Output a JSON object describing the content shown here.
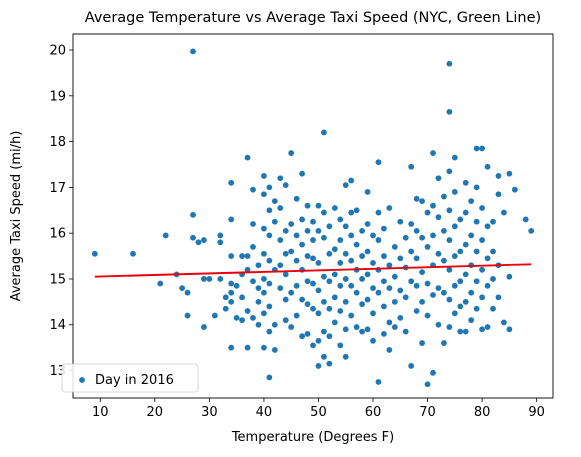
{
  "chart_data": {
    "type": "scatter",
    "title": "Average Temperature vs Average Taxi Speed (NYC, Green Line)",
    "xlabel": "Temperature (Degrees F)",
    "ylabel": "Average Taxi Speed (mi/h)",
    "xlim": [
      5.0,
      93.0
    ],
    "ylim": [
      12.4,
      20.35
    ],
    "x_ticks": [
      "10",
      "20",
      "30",
      "40",
      "50",
      "60",
      "70",
      "80",
      "90"
    ],
    "y_ticks": [
      "13",
      "14",
      "15",
      "16",
      "17",
      "18",
      "19",
      "20"
    ],
    "grid": false,
    "legend": {
      "position": "lower-left",
      "entries": [
        "Day in 2016"
      ]
    },
    "colors": {
      "points": "#1f77b4",
      "trend": "#e8000b"
    },
    "trend_line": {
      "x": [
        9,
        89
      ],
      "y": [
        15.05,
        15.32
      ]
    },
    "series": [
      {
        "name": "Day in 2016",
        "points": [
          [
            9,
            15.55
          ],
          [
            16,
            15.55
          ],
          [
            21,
            14.9
          ],
          [
            22,
            15.95
          ],
          [
            24,
            15.1
          ],
          [
            25,
            14.8
          ],
          [
            26,
            14.2
          ],
          [
            26,
            14.7
          ],
          [
            27,
            19.97
          ],
          [
            27,
            16.4
          ],
          [
            27,
            15.9
          ],
          [
            28,
            15.8
          ],
          [
            29,
            15.85
          ],
          [
            29,
            15.0
          ],
          [
            29,
            13.95
          ],
          [
            30,
            15.0
          ],
          [
            31,
            14.2
          ],
          [
            32,
            15.95
          ],
          [
            32,
            15.8
          ],
          [
            32,
            15.0
          ],
          [
            33,
            14.6
          ],
          [
            33,
            14.35
          ],
          [
            34,
            17.1
          ],
          [
            34,
            16.3
          ],
          [
            34,
            15.5
          ],
          [
            34,
            14.9
          ],
          [
            34,
            14.7
          ],
          [
            34,
            14.5
          ],
          [
            34,
            13.5
          ],
          [
            35,
            14.85
          ],
          [
            35,
            14.15
          ],
          [
            36,
            15.5
          ],
          [
            36,
            15.1
          ],
          [
            36,
            14.6
          ],
          [
            36,
            14.1
          ],
          [
            37,
            17.65
          ],
          [
            37,
            15.5
          ],
          [
            37,
            15.2
          ],
          [
            37,
            14.3
          ],
          [
            37,
            13.5
          ],
          [
            38,
            16.95
          ],
          [
            38,
            16.2
          ],
          [
            38,
            15.7
          ],
          [
            38,
            14.95
          ],
          [
            38,
            14.15
          ],
          [
            39,
            15.3
          ],
          [
            39,
            14.8
          ],
          [
            39,
            14.5
          ],
          [
            39,
            14.0
          ],
          [
            40,
            17.25
          ],
          [
            40,
            16.85
          ],
          [
            40,
            16.1
          ],
          [
            40,
            15.55
          ],
          [
            40,
            15.0
          ],
          [
            40,
            14.7
          ],
          [
            40,
            14.25
          ],
          [
            40,
            13.5
          ],
          [
            41,
            17.0
          ],
          [
            41,
            16.5
          ],
          [
            41,
            15.95
          ],
          [
            41,
            15.4
          ],
          [
            41,
            14.9
          ],
          [
            41,
            14.4
          ],
          [
            41,
            13.85
          ],
          [
            41,
            12.85
          ],
          [
            42,
            16.7
          ],
          [
            42,
            16.25
          ],
          [
            42,
            15.2
          ],
          [
            42,
            14.0
          ],
          [
            42,
            13.45
          ],
          [
            43,
            17.2
          ],
          [
            43,
            16.55
          ],
          [
            43,
            15.85
          ],
          [
            43,
            15.3
          ],
          [
            43,
            14.8
          ],
          [
            44,
            17.05
          ],
          [
            44,
            16.05
          ],
          [
            44,
            15.55
          ],
          [
            44,
            15.1
          ],
          [
            44,
            14.55
          ],
          [
            44,
            14.1
          ],
          [
            45,
            17.75
          ],
          [
            45,
            16.2
          ],
          [
            45,
            15.6
          ],
          [
            45,
            14.7
          ],
          [
            45,
            13.95
          ],
          [
            46,
            16.75
          ],
          [
            46,
            15.95
          ],
          [
            46,
            15.4
          ],
          [
            46,
            14.85
          ],
          [
            46,
            14.2
          ],
          [
            47,
            17.3
          ],
          [
            47,
            16.3
          ],
          [
            47,
            15.75
          ],
          [
            47,
            15.2
          ],
          [
            47,
            14.55
          ],
          [
            47,
            13.75
          ],
          [
            48,
            16.6
          ],
          [
            48,
            16.05
          ],
          [
            48,
            15.5
          ],
          [
            48,
            14.95
          ],
          [
            48,
            14.45
          ],
          [
            48,
            13.8
          ],
          [
            49,
            16.25
          ],
          [
            49,
            15.85
          ],
          [
            49,
            15.45
          ],
          [
            49,
            14.9
          ],
          [
            49,
            14.35
          ],
          [
            49,
            13.55
          ],
          [
            50,
            16.6
          ],
          [
            50,
            16.05
          ],
          [
            50,
            15.35
          ],
          [
            50,
            14.75
          ],
          [
            50,
            14.25
          ],
          [
            50,
            13.65
          ],
          [
            50,
            13.1
          ],
          [
            51,
            18.2
          ],
          [
            51,
            16.45
          ],
          [
            51,
            15.9
          ],
          [
            51,
            15.05
          ],
          [
            51,
            14.5
          ],
          [
            51,
            13.85
          ],
          [
            51,
            13.3
          ],
          [
            52,
            16.15
          ],
          [
            52,
            15.55
          ],
          [
            52,
            14.95
          ],
          [
            52,
            14.35
          ],
          [
            52,
            13.75
          ],
          [
            52,
            13.15
          ],
          [
            53,
            16.55
          ],
          [
            53,
            15.65
          ],
          [
            53,
            15.1
          ],
          [
            53,
            14.6
          ],
          [
            53,
            14.05
          ],
          [
            54,
            16.3
          ],
          [
            54,
            15.85
          ],
          [
            54,
            15.35
          ],
          [
            54,
            14.85
          ],
          [
            54,
            14.3
          ],
          [
            54,
            13.55
          ],
          [
            55,
            17.05
          ],
          [
            55,
            16.15
          ],
          [
            55,
            15.55
          ],
          [
            55,
            15.0
          ],
          [
            55,
            14.5
          ],
          [
            55,
            13.9
          ],
          [
            55,
            13.3
          ],
          [
            56,
            17.15
          ],
          [
            56,
            16.45
          ],
          [
            56,
            15.95
          ],
          [
            56,
            15.4
          ],
          [
            56,
            14.85
          ],
          [
            56,
            14.2
          ],
          [
            57,
            16.5
          ],
          [
            57,
            15.75
          ],
          [
            57,
            15.2
          ],
          [
            57,
            14.7
          ],
          [
            57,
            13.95
          ],
          [
            58,
            16.05
          ],
          [
            58,
            15.5
          ],
          [
            58,
            15.0
          ],
          [
            58,
            14.45
          ],
          [
            58,
            13.85
          ],
          [
            59,
            16.9
          ],
          [
            59,
            16.2
          ],
          [
            59,
            15.6
          ],
          [
            59,
            15.1
          ],
          [
            59,
            14.55
          ],
          [
            59,
            13.9
          ],
          [
            60,
            15.95
          ],
          [
            60,
            15.35
          ],
          [
            60,
            14.8
          ],
          [
            60,
            14.25
          ],
          [
            60,
            13.65
          ],
          [
            61,
            17.55
          ],
          [
            61,
            16.45
          ],
          [
            61,
            15.85
          ],
          [
            61,
            15.2
          ],
          [
            61,
            14.7
          ],
          [
            61,
            12.75
          ],
          [
            62,
            16.1
          ],
          [
            62,
            15.5
          ],
          [
            62,
            14.95
          ],
          [
            62,
            14.4
          ],
          [
            62,
            13.8
          ],
          [
            63,
            16.55
          ],
          [
            63,
            15.3
          ],
          [
            63,
            14.8
          ],
          [
            63,
            14.05
          ],
          [
            63,
            13.45
          ],
          [
            64,
            15.7
          ],
          [
            64,
            15.05
          ],
          [
            64,
            14.5
          ],
          [
            64,
            13.95
          ],
          [
            65,
            16.25
          ],
          [
            65,
            15.45
          ],
          [
            65,
            14.75
          ],
          [
            65,
            14.15
          ],
          [
            66,
            15.9
          ],
          [
            66,
            15.25
          ],
          [
            66,
            14.6
          ],
          [
            66,
            13.85
          ],
          [
            67,
            17.45
          ],
          [
            67,
            16.2
          ],
          [
            67,
            15.6
          ],
          [
            67,
            14.95
          ],
          [
            67,
            13.1
          ],
          [
            68,
            16.75
          ],
          [
            68,
            16.05
          ],
          [
            68,
            15.45
          ],
          [
            68,
            14.85
          ],
          [
            68,
            14.3
          ],
          [
            69,
            16.7
          ],
          [
            69,
            15.9
          ],
          [
            69,
            15.15
          ],
          [
            69,
            14.5
          ],
          [
            69,
            13.6
          ],
          [
            70,
            16.45
          ],
          [
            70,
            15.7
          ],
          [
            70,
            14.9
          ],
          [
            70,
            14.2
          ],
          [
            70,
            12.7
          ],
          [
            71,
            17.75
          ],
          [
            71,
            16.6
          ],
          [
            71,
            15.95
          ],
          [
            71,
            15.3
          ],
          [
            71,
            14.65
          ],
          [
            71,
            12.95
          ],
          [
            72,
            17.2
          ],
          [
            72,
            16.35
          ],
          [
            72,
            15.55
          ],
          [
            72,
            14.8
          ],
          [
            72,
            14.0
          ],
          [
            73,
            16.8
          ],
          [
            73,
            16.05
          ],
          [
            73,
            15.4
          ],
          [
            73,
            14.7
          ],
          [
            73,
            13.6
          ],
          [
            74,
            19.7
          ],
          [
            74,
            18.65
          ],
          [
            74,
            17.35
          ],
          [
            74,
            16.5
          ],
          [
            74,
            15.85
          ],
          [
            74,
            15.2
          ],
          [
            74,
            14.55
          ],
          [
            74,
            13.95
          ],
          [
            75,
            17.65
          ],
          [
            75,
            16.9
          ],
          [
            75,
            16.15
          ],
          [
            75,
            15.5
          ],
          [
            75,
            14.85
          ],
          [
            75,
            14.25
          ],
          [
            76,
            16.3
          ],
          [
            76,
            15.6
          ],
          [
            76,
            14.95
          ],
          [
            76,
            14.4
          ],
          [
            76,
            13.85
          ],
          [
            77,
            17.1
          ],
          [
            77,
            16.45
          ],
          [
            77,
            15.75
          ],
          [
            77,
            15.1
          ],
          [
            77,
            14.5
          ],
          [
            77,
            13.85
          ],
          [
            78,
            16.7
          ],
          [
            78,
            15.95
          ],
          [
            78,
            15.3
          ],
          [
            78,
            14.7
          ],
          [
            78,
            14.1
          ],
          [
            79,
            17.85
          ],
          [
            79,
            17.0
          ],
          [
            79,
            16.25
          ],
          [
            79,
            15.6
          ],
          [
            79,
            14.95
          ],
          [
            79,
            14.35
          ],
          [
            80,
            17.85
          ],
          [
            80,
            16.55
          ],
          [
            80,
            15.85
          ],
          [
            80,
            15.2
          ],
          [
            80,
            14.6
          ],
          [
            80,
            13.9
          ],
          [
            81,
            17.45
          ],
          [
            81,
            16.15
          ],
          [
            81,
            15.45
          ],
          [
            81,
            14.85
          ],
          [
            81,
            13.95
          ],
          [
            82,
            16.25
          ],
          [
            82,
            15.6
          ],
          [
            82,
            15.0
          ],
          [
            82,
            14.35
          ],
          [
            83,
            17.25
          ],
          [
            83,
            16.85
          ],
          [
            83,
            15.3
          ],
          [
            83,
            14.6
          ],
          [
            84,
            16.45
          ],
          [
            84,
            14.05
          ],
          [
            85,
            17.3
          ],
          [
            85,
            15.05
          ],
          [
            85,
            13.9
          ],
          [
            86,
            16.95
          ],
          [
            88,
            16.3
          ],
          [
            89,
            16.05
          ]
        ]
      }
    ]
  }
}
